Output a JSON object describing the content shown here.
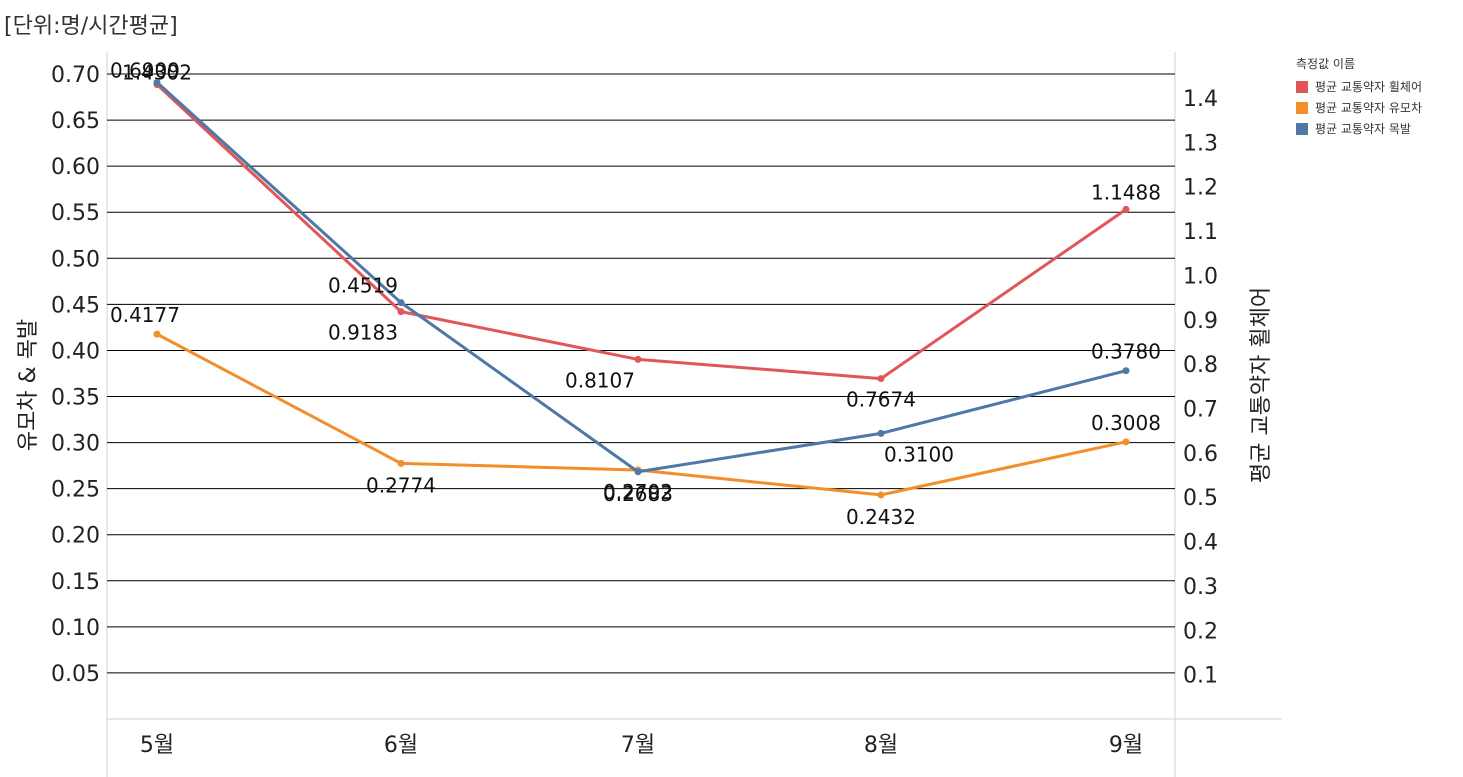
{
  "title": "[단위:명/시간평균]",
  "chart_data": {
    "type": "line",
    "categories": [
      "5월",
      "6월",
      "7월",
      "8월",
      "9월"
    ],
    "y_left": {
      "label": "유모차 & 목발",
      "ticks": [
        "0.05",
        "0.10",
        "0.15",
        "0.20",
        "0.25",
        "0.30",
        "0.35",
        "0.40",
        "0.45",
        "0.50",
        "0.55",
        "0.60",
        "0.65",
        "0.70"
      ],
      "range": [
        0,
        0.7
      ],
      "grid": true
    },
    "y_right": {
      "label": "평균 교통약자 휠체어",
      "ticks": [
        "0.1",
        "0.2",
        "0.3",
        "0.4",
        "0.5",
        "0.6",
        "0.7",
        "0.8",
        "0.9",
        "1.0",
        "1.1",
        "1.2",
        "1.3",
        "1.4"
      ],
      "range": [
        0,
        1.45
      ]
    },
    "legend": {
      "title": "측정값 이름",
      "placement": "right"
    },
    "series": [
      {
        "name": "평균 교통약자 휠체어",
        "color": "#e15759",
        "axis": "right",
        "values": [
          1.4302,
          0.9183,
          0.8107,
          0.7674,
          1.1488
        ],
        "labels": [
          "1.4302",
          "0.9183",
          "0.8107",
          "0.7674",
          "1.1488"
        ]
      },
      {
        "name": "평균 교통약자 유모차",
        "color": "#f28e2b",
        "axis": "left",
        "values": [
          0.4177,
          0.2774,
          0.2702,
          0.2432,
          0.3008
        ],
        "labels": [
          "0.4177",
          "0.2774",
          "0.2702",
          "0.2432",
          "0.3008"
        ]
      },
      {
        "name": "평균 교통약자 목발",
        "color": "#4e79a7",
        "axis": "left",
        "values": [
          0.6909,
          0.4519,
          0.2683,
          0.31,
          0.378
        ],
        "labels": [
          "0.6909",
          "0.4519",
          "0.2683",
          "0.3100",
          "0.3780"
        ]
      }
    ]
  }
}
